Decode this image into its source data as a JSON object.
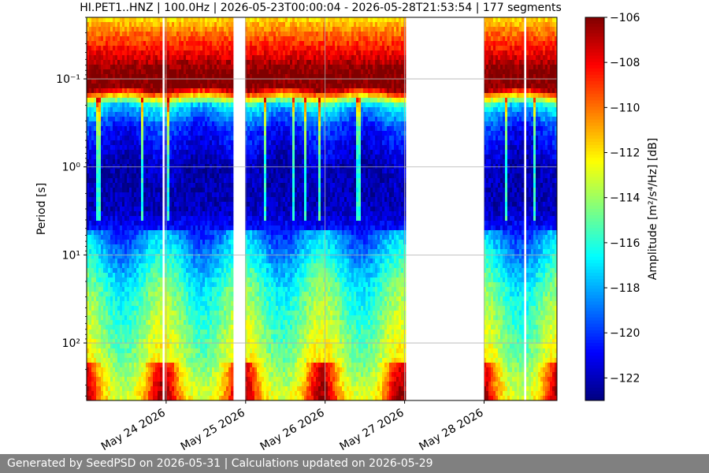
{
  "chart_data": {
    "type": "heatmap",
    "title": "HI.PET1..HNZ | 100.0Hz | 2026-05-23T00:00:04 - 2026-05-28T21:53:54 | 177 segments",
    "ylabel": "Period [s]",
    "colorbar_label": "Amplitude [m²/s⁴/Hz] [dB]",
    "colormap": "jet",
    "x_axis": {
      "type": "date",
      "range": [
        "2026-05-23T00:00",
        "2026-05-28T22:00"
      ],
      "ticks": [
        {
          "value": "2026-05-24",
          "label": "May 24 2026"
        },
        {
          "value": "2026-05-25",
          "label": "May 25 2026"
        },
        {
          "value": "2026-05-26",
          "label": "May 26 2026"
        },
        {
          "value": "2026-05-27",
          "label": "May 27 2026"
        },
        {
          "value": "2026-05-28",
          "label": "May 28 2026"
        }
      ]
    },
    "y_axis": {
      "scale": "log",
      "inverted": true,
      "range": [
        0.02,
        450
      ],
      "ticks": [
        {
          "value": 0.1,
          "label": "10⁻¹"
        },
        {
          "value": 1,
          "label": "10⁰"
        },
        {
          "value": 10,
          "label": "10¹"
        },
        {
          "value": 100,
          "label": "10²"
        }
      ]
    },
    "color_axis": {
      "range": [
        -123,
        -106
      ],
      "ticks": [
        -106,
        -108,
        -110,
        -112,
        -114,
        -116,
        -118,
        -120,
        -122
      ]
    },
    "grid": true,
    "data_gaps": [
      [
        "2026-05-23T22:45",
        "2026-05-23T23:30"
      ],
      [
        "2026-05-24T20:30",
        "2026-05-25T00:00"
      ],
      [
        "2026-05-27T00:00",
        "2026-05-28T00:00"
      ],
      [
        "2026-05-28T12:10",
        "2026-05-28T12:40"
      ]
    ],
    "psd_profile_db": [
      {
        "period": 0.02,
        "db": -112
      },
      {
        "period": 0.03,
        "db": -110
      },
      {
        "period": 0.05,
        "db": -108
      },
      {
        "period": 0.08,
        "db": -106
      },
      {
        "period": 0.12,
        "db": -106
      },
      {
        "period": 0.2,
        "db": -118
      },
      {
        "period": 0.35,
        "db": -121
      },
      {
        "period": 1,
        "db": -122.5
      },
      {
        "period": 3,
        "db": -122
      },
      {
        "period": 10,
        "db": -119
      },
      {
        "period": 25,
        "db": -117
      },
      {
        "period": 60,
        "db": -116
      },
      {
        "period": 150,
        "db": -115
      },
      {
        "period": 450,
        "db": -113
      }
    ]
  },
  "footer": {
    "text": "Generated by SeedPSD on 2026-05-31 | Calculations updated on 2026-05-29"
  }
}
